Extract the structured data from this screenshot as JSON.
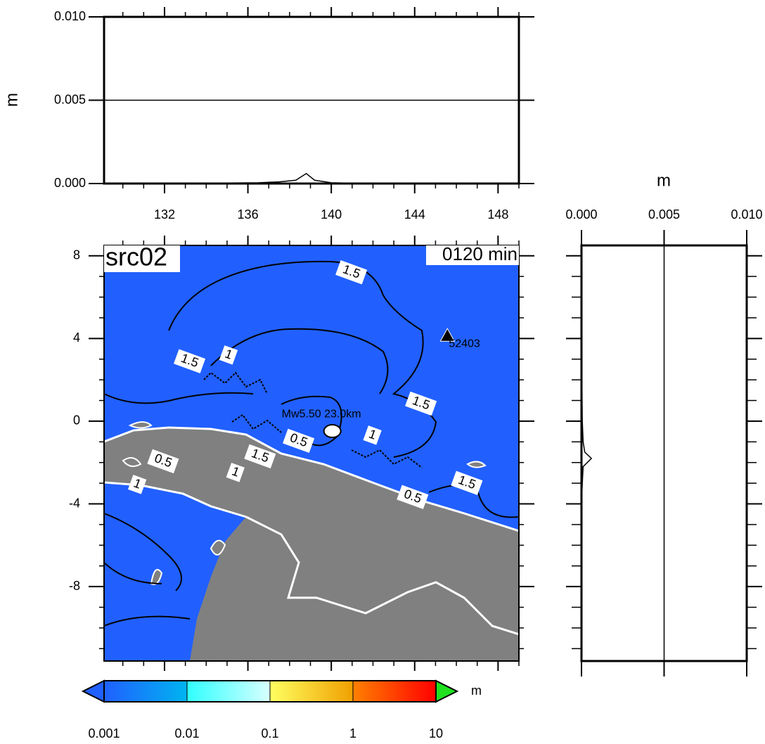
{
  "chart_data": [
    {
      "type": "line",
      "y_label": "m",
      "xlim": [
        129.1,
        149.0
      ],
      "xticks": [
        132,
        136,
        140,
        144,
        148
      ],
      "ylim": [
        0,
        0.01
      ],
      "yticks": [
        {
          "value": 0.0,
          "label": "0.000"
        },
        {
          "value": 0.005,
          "label": "0.005"
        },
        {
          "value": 0.01,
          "label": "0.010"
        }
      ],
      "grid": true,
      "color": "#000000",
      "x": [
        129.1,
        133.0,
        135.0,
        136.5,
        137.5,
        138.3,
        138.8,
        139.2,
        140.0,
        141.0,
        142.0,
        149.0
      ],
      "values": [
        0,
        0,
        3e-05,
        5e-05,
        0.0001,
        0.0002,
        0.0006,
        0.0002,
        5e-05,
        2e-05,
        0,
        0
      ]
    },
    {
      "type": "map",
      "title": "src02",
      "subtitle": "0120 min",
      "xlim": [
        129.1,
        149.0
      ],
      "ylim": [
        -11.6,
        8.5
      ],
      "yticks": [
        8,
        4,
        0,
        -4,
        -8
      ],
      "sea_color": "#2160ff",
      "land_color": "#808080",
      "station": {
        "name": "52403",
        "lon": 145.57,
        "lat": 4.14
      },
      "epicenter": {
        "label": "Mw5.50 23.0km",
        "lon": 140.05,
        "lat": -0.48
      },
      "contour_labels": [
        {
          "label": "1.5",
          "lon": 140.96,
          "lat": 7.2
        },
        {
          "label": "1.5",
          "lon": 133.2,
          "lat": 2.9
        },
        {
          "label": "1",
          "lon": 135.07,
          "lat": 3.2
        },
        {
          "label": "1.5",
          "lon": 144.3,
          "lat": 0.85
        },
        {
          "label": "0.5",
          "lon": 138.43,
          "lat": -0.95
        },
        {
          "label": "1",
          "lon": 141.97,
          "lat": -0.68
        },
        {
          "label": "1.5",
          "lon": 136.58,
          "lat": -1.7
        },
        {
          "label": "1",
          "lon": 135.4,
          "lat": -2.48
        },
        {
          "label": "0.5",
          "lon": 131.93,
          "lat": -1.94
        },
        {
          "label": "1",
          "lon": 130.69,
          "lat": -3.06
        },
        {
          "label": "1.5",
          "lon": 146.5,
          "lat": -2.99
        },
        {
          "label": "0.5",
          "lon": 143.9,
          "lat": -3.67
        }
      ]
    },
    {
      "type": "profile",
      "x_label": "m",
      "xlim": [
        0,
        0.01
      ],
      "xticks": [
        {
          "value": 0.0,
          "label": "0.000"
        },
        {
          "value": 0.005,
          "label": "0.005"
        },
        {
          "value": 0.01,
          "label": "0.010"
        }
      ],
      "ylim": [
        -11.6,
        8.5
      ],
      "grid": true,
      "color": "#000000",
      "y": [
        8.5,
        4,
        0,
        -1,
        -1.5,
        -1.8,
        -2.2,
        -3,
        -4,
        -11.6
      ],
      "values": [
        0,
        0,
        5e-05,
        0.0001,
        0.0002,
        0.0006,
        0.0001,
        5e-05,
        0,
        0
      ]
    },
    {
      "type": "colorbar",
      "log": true,
      "unit": "m",
      "ticks": [
        0.001,
        0.01,
        0.1,
        1,
        10
      ],
      "segment_colors": [
        [
          "#2060ff",
          "#00b4f0"
        ],
        [
          "#30ffff",
          "#d8ffff"
        ],
        [
          "#ffff60",
          "#f0a000"
        ],
        [
          "#ff8000",
          "#ff0000"
        ]
      ],
      "under_color": "#2060ff",
      "over_color": "#20e020"
    }
  ]
}
